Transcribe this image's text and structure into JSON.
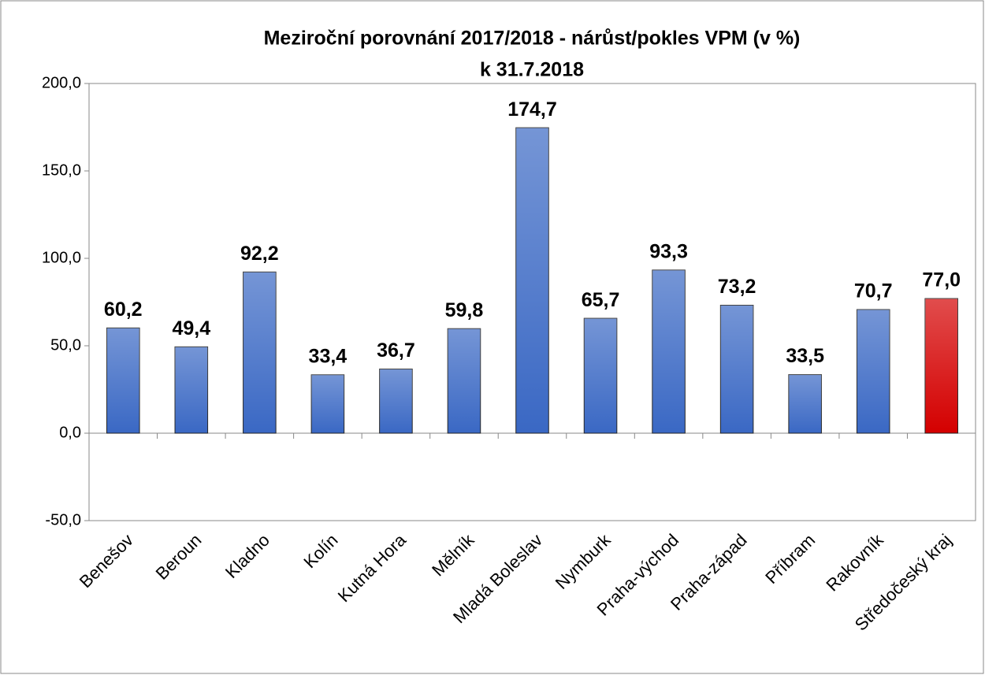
{
  "chart_data": {
    "type": "bar",
    "title": "Meziroční porovnání 2017/2018 - nárůst/pokles VPM (v %)",
    "subtitle": "k 31.7.2018",
    "categories": [
      "Benešov",
      "Beroun",
      "Kladno",
      "Kolín",
      "Kutná Hora",
      "Mělník",
      "Mladá Boleslav",
      "Nymburk",
      "Praha-východ",
      "Praha-západ",
      "Příbram",
      "Rakovník",
      "Středočeský kraj"
    ],
    "values": [
      60.2,
      49.4,
      92.2,
      33.4,
      36.7,
      59.8,
      174.7,
      65.7,
      93.3,
      73.2,
      33.5,
      70.7,
      77.0
    ],
    "value_labels": [
      "60,2",
      "49,4",
      "92,2",
      "33,4",
      "36,7",
      "59,8",
      "174,7",
      "65,7",
      "93,3",
      "73,2",
      "33,5",
      "70,7",
      "77,0"
    ],
    "colors": [
      "#3a68c4",
      "#3a68c4",
      "#3a68c4",
      "#3a68c4",
      "#3a68c4",
      "#3a68c4",
      "#3a68c4",
      "#3a68c4",
      "#3a68c4",
      "#3a68c4",
      "#3a68c4",
      "#3a68c4",
      "#d40000"
    ],
    "ylim": [
      -50,
      200
    ],
    "yticks": [
      {
        "value": -50,
        "label": "-50,0"
      },
      {
        "value": 0,
        "label": "0,0"
      },
      {
        "value": 50,
        "label": "50,0"
      },
      {
        "value": 100,
        "label": "100,0"
      },
      {
        "value": 150,
        "label": "150,0"
      },
      {
        "value": 200,
        "label": "200,0"
      }
    ],
    "grid": false
  }
}
